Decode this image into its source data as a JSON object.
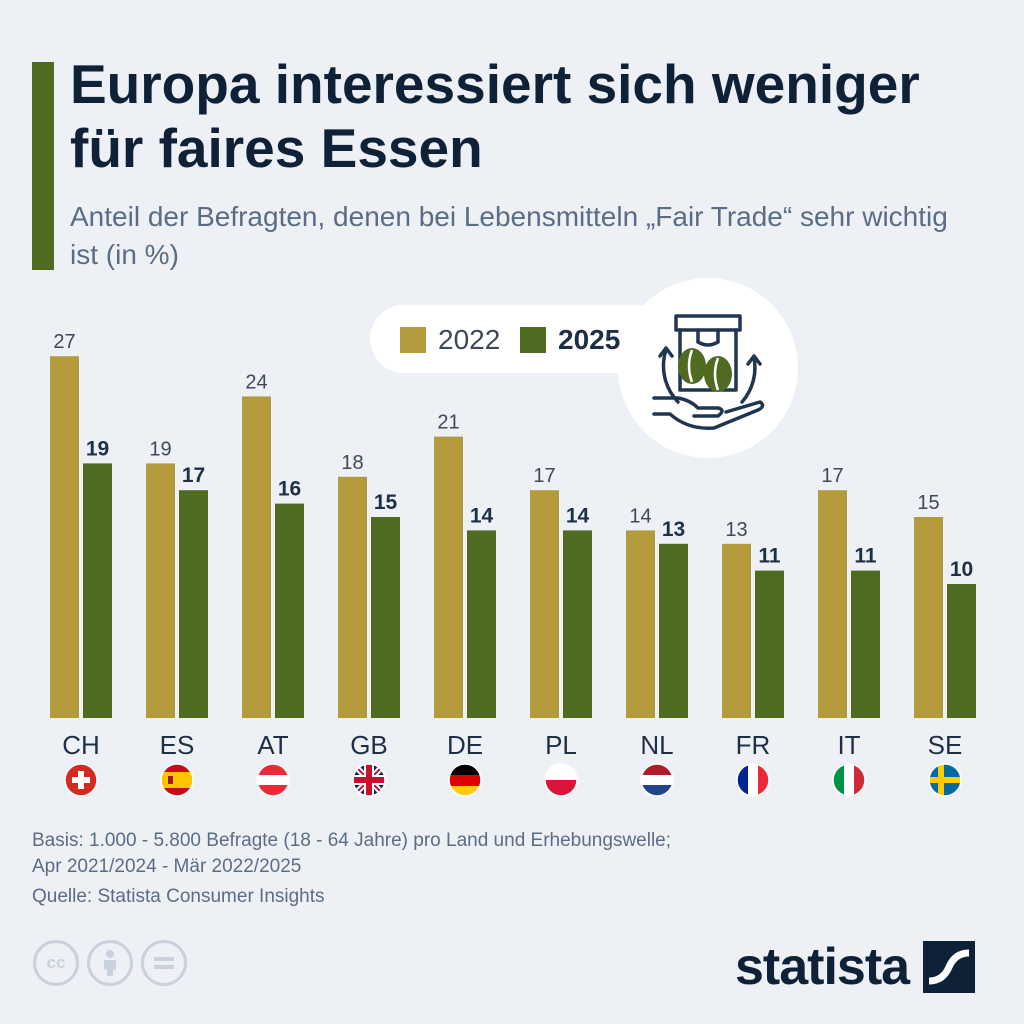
{
  "title": "Europa interessiert sich weniger für faires Essen",
  "subtitle": "Anteil der Befragten, denen bei Lebensmitteln „Fair Trade“ sehr wichtig ist (in %)",
  "legend": {
    "series_2022": "2022",
    "series_2025": "2025"
  },
  "colors": {
    "series_2022": "#b39b3b",
    "series_2025": "#4f6b22",
    "accent": "#4f6b22"
  },
  "illustration": "fair-trade-coffee-bag-hand-icon",
  "footer": {
    "note_line1": "Basis: 1.000 - 5.800 Befragte (18 - 64 Jahre) pro Land und Erhebungswelle;",
    "note_line2": "Apr 2021/2024 - Mär 2022/2025",
    "source": "Quelle: Statista Consumer Insights",
    "cc_label": "cc",
    "logo_text": "statista"
  },
  "chart_data": {
    "type": "bar",
    "categories": [
      "CH",
      "ES",
      "AT",
      "GB",
      "DE",
      "PL",
      "NL",
      "FR",
      "IT",
      "SE"
    ],
    "flags": [
      "flag-switzerland",
      "flag-spain",
      "flag-austria",
      "flag-united-kingdom",
      "flag-germany",
      "flag-poland",
      "flag-netherlands",
      "flag-france",
      "flag-italy",
      "flag-sweden"
    ],
    "series": [
      {
        "name": "2022",
        "values": [
          27,
          19,
          24,
          18,
          21,
          17,
          14,
          13,
          17,
          15
        ]
      },
      {
        "name": "2025",
        "values": [
          19,
          17,
          16,
          15,
          14,
          14,
          13,
          11,
          11,
          10
        ]
      }
    ],
    "ylim": [
      0,
      27
    ],
    "grid": false,
    "legend_position": "top-center"
  }
}
